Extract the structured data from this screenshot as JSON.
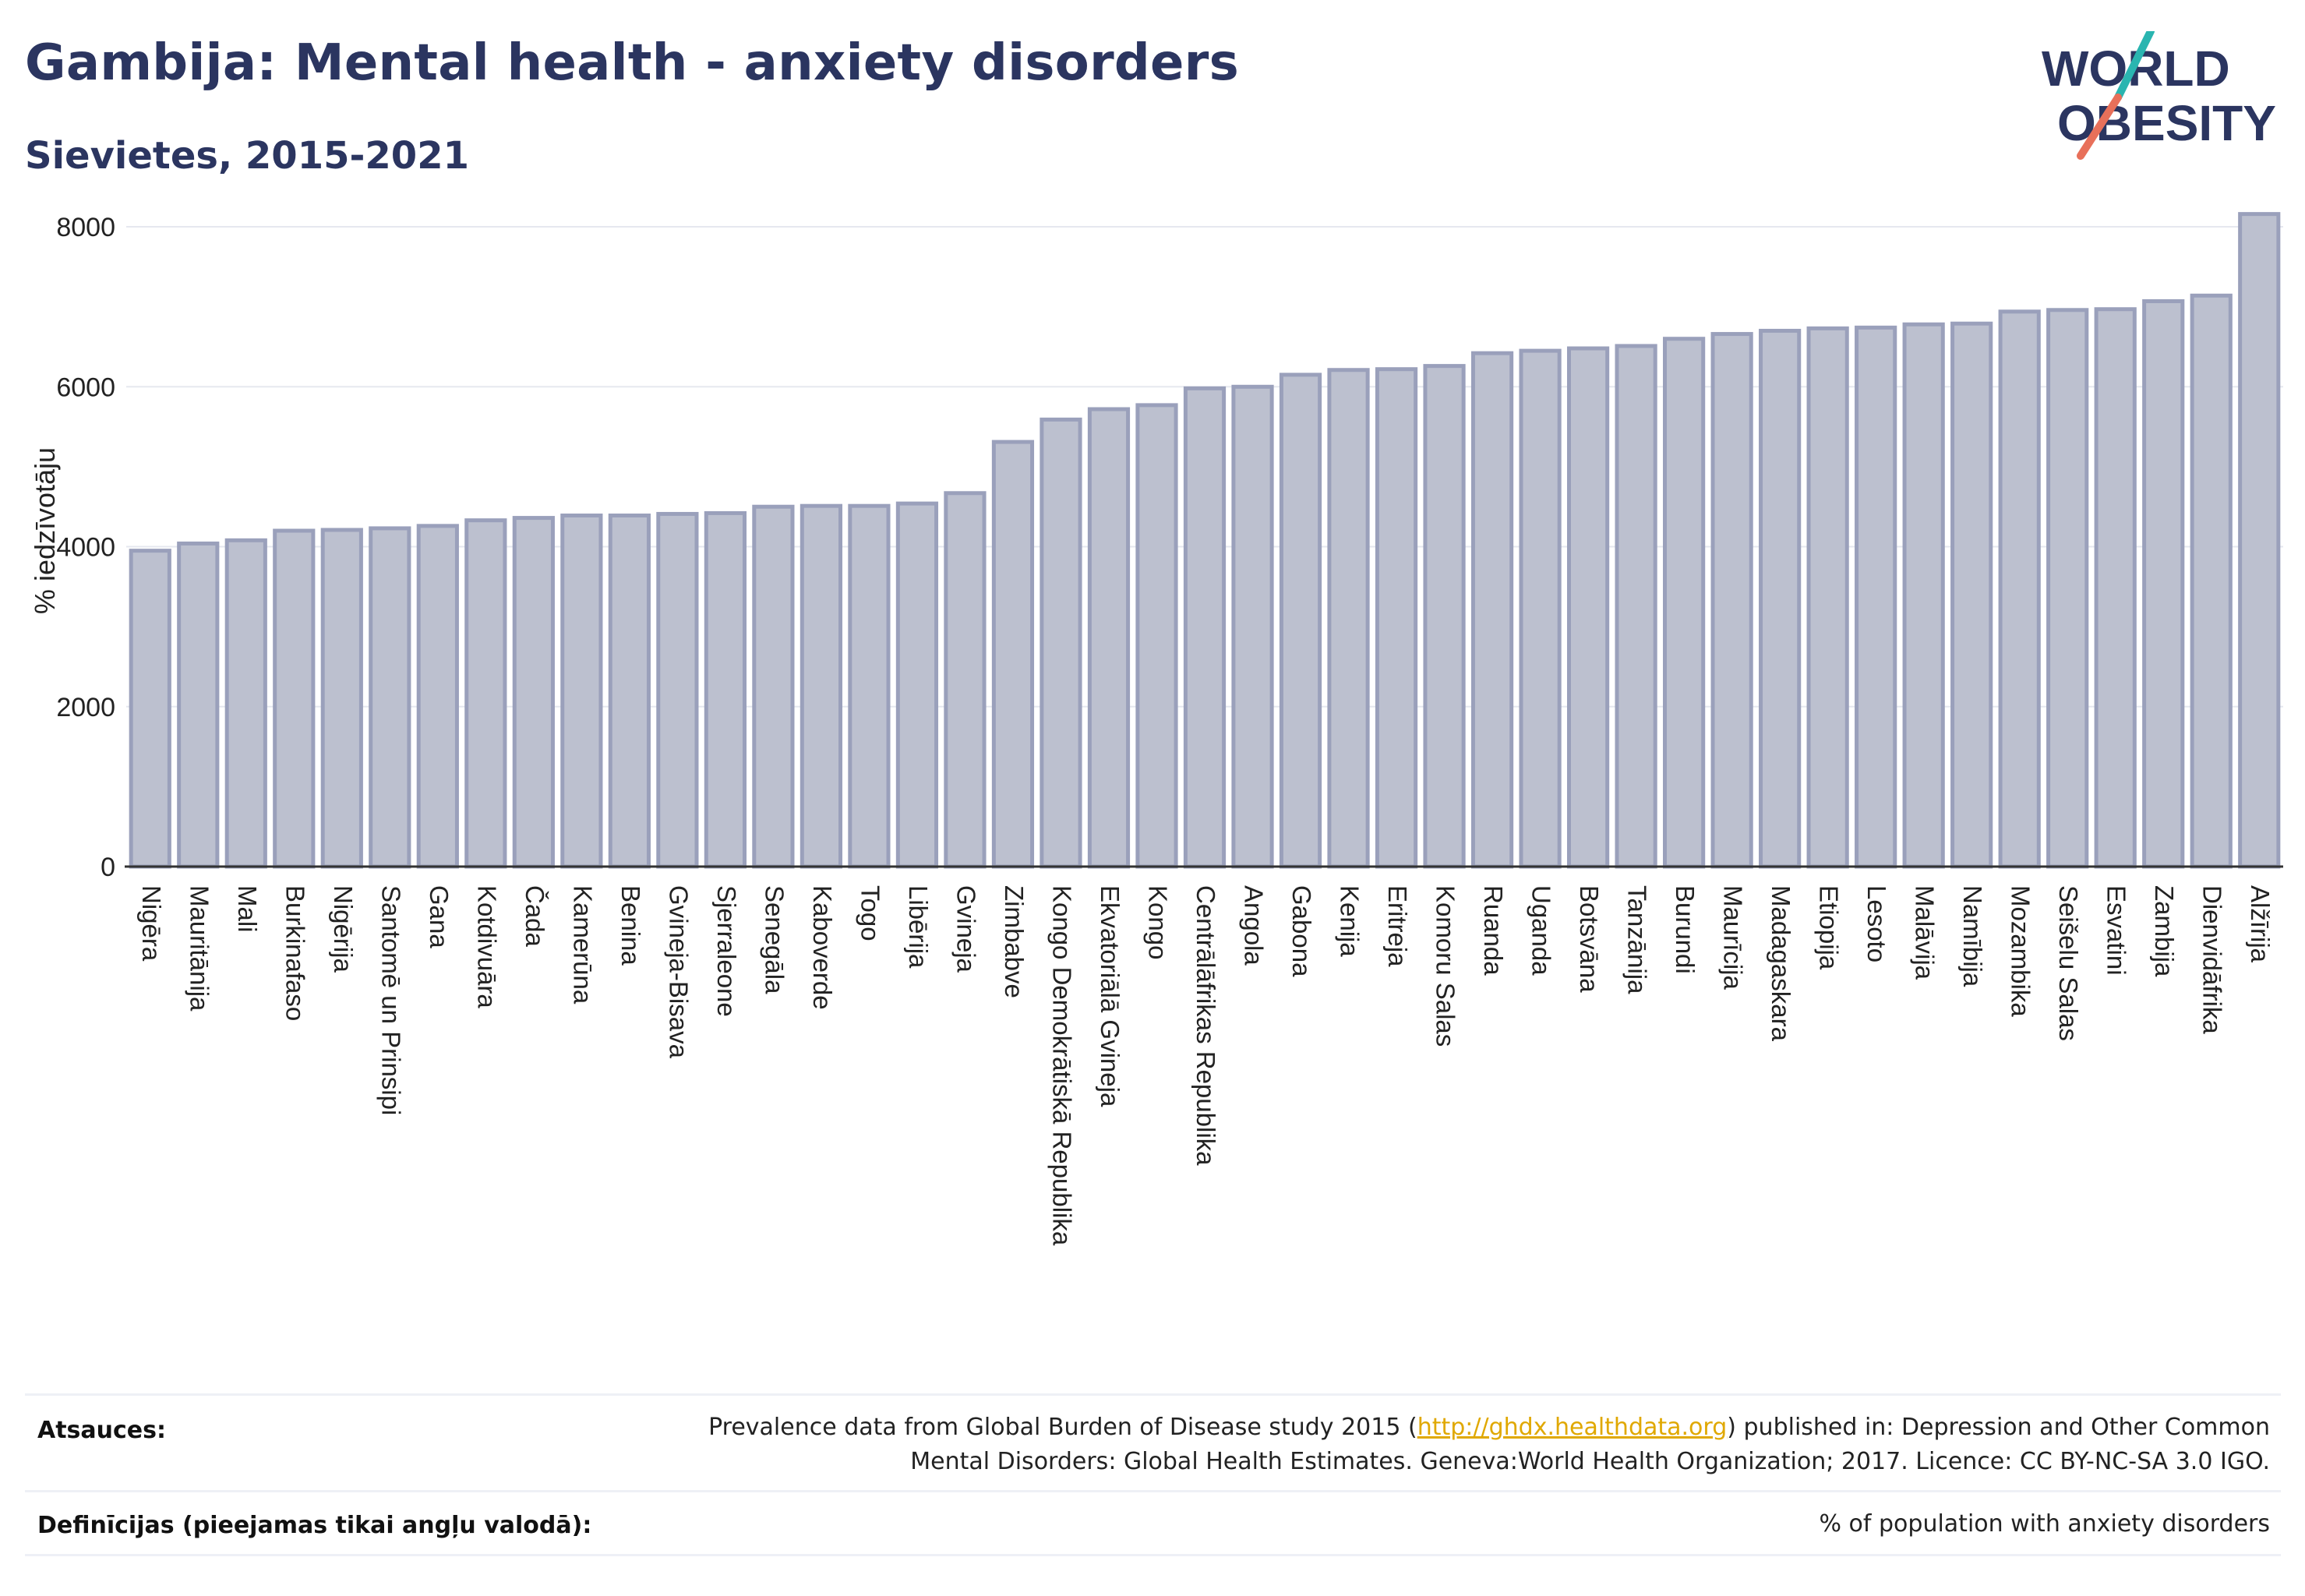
{
  "header": {
    "title": "Gambija: Mental health - anxiety disorders",
    "subtitle": "Sievietes, 2015-2021"
  },
  "logo": {
    "line1": "WORLD",
    "line2": "OBESITY",
    "colors": {
      "text": "#2b3560",
      "slash_teal": "#2ab5b0",
      "slash_coral": "#e8705a"
    }
  },
  "chart_data": {
    "type": "bar",
    "ylabel": "% iedzīvotāju",
    "xlabel": "",
    "ylim": [
      0,
      8400
    ],
    "yticks": [
      0,
      2000,
      4000,
      6000,
      8000
    ],
    "grid": true,
    "bar_fill": "#bcc0cf",
    "bar_stroke": "#9aa0bb",
    "categories": [
      "Nigēra",
      "Mauritānija",
      "Mali",
      "Burkinafaso",
      "Nigērija",
      "Santomē un Prinsipi",
      "Gana",
      "Kotdivuāra",
      "Čada",
      "Kamerūna",
      "Benina",
      "Gvineja-Bisava",
      "Sjerraleone",
      "Senegāla",
      "Kaboverde",
      "Togo",
      "Libērija",
      "Gvineja",
      "Zimbabve",
      "Kongo Demokrātiskā Republika",
      "Ekvatoriālā Gvineja",
      "Kongo",
      "Centrālāfrikas Republika",
      "Angola",
      "Gabona",
      "Kenija",
      "Eritreja",
      "Komoru Salas",
      "Ruanda",
      "Uganda",
      "Botsvāna",
      "Tanzānija",
      "Burundi",
      "Maurīcija",
      "Madagaskara",
      "Etiopija",
      "Lesoto",
      "Malāvija",
      "Namībija",
      "Mozambika",
      "Seišelu Salas",
      "Esvatini",
      "Zambija",
      "Dienvidāfrika",
      "Alžīrija"
    ],
    "values": [
      3950,
      4040,
      4080,
      4200,
      4210,
      4230,
      4260,
      4330,
      4360,
      4390,
      4390,
      4410,
      4420,
      4500,
      4510,
      4510,
      4540,
      4670,
      5310,
      5590,
      5720,
      5770,
      5980,
      6000,
      6150,
      6210,
      6220,
      6260,
      6420,
      6450,
      6480,
      6510,
      6600,
      6660,
      6700,
      6730,
      6740,
      6780,
      6790,
      6940,
      6960,
      6970,
      7070,
      7140,
      8160
    ]
  },
  "footer": {
    "sources_label": "Atsauces:",
    "sources_text_before": "Prevalence data from Global Burden of Disease study 2015 (",
    "sources_link": "http://ghdx.healthdata.org",
    "sources_text_after": ") published in: Depression and Other Common",
    "sources_line2": "Mental Disorders: Global Health Estimates. Geneva:World Health Organization; 2017. Licence: CC BY-NC-SA 3.0 IGO.",
    "definitions_label": "Definīcijas (pieejamas tikai angļu valodā):",
    "definitions_text": "% of population with anxiety disorders"
  }
}
